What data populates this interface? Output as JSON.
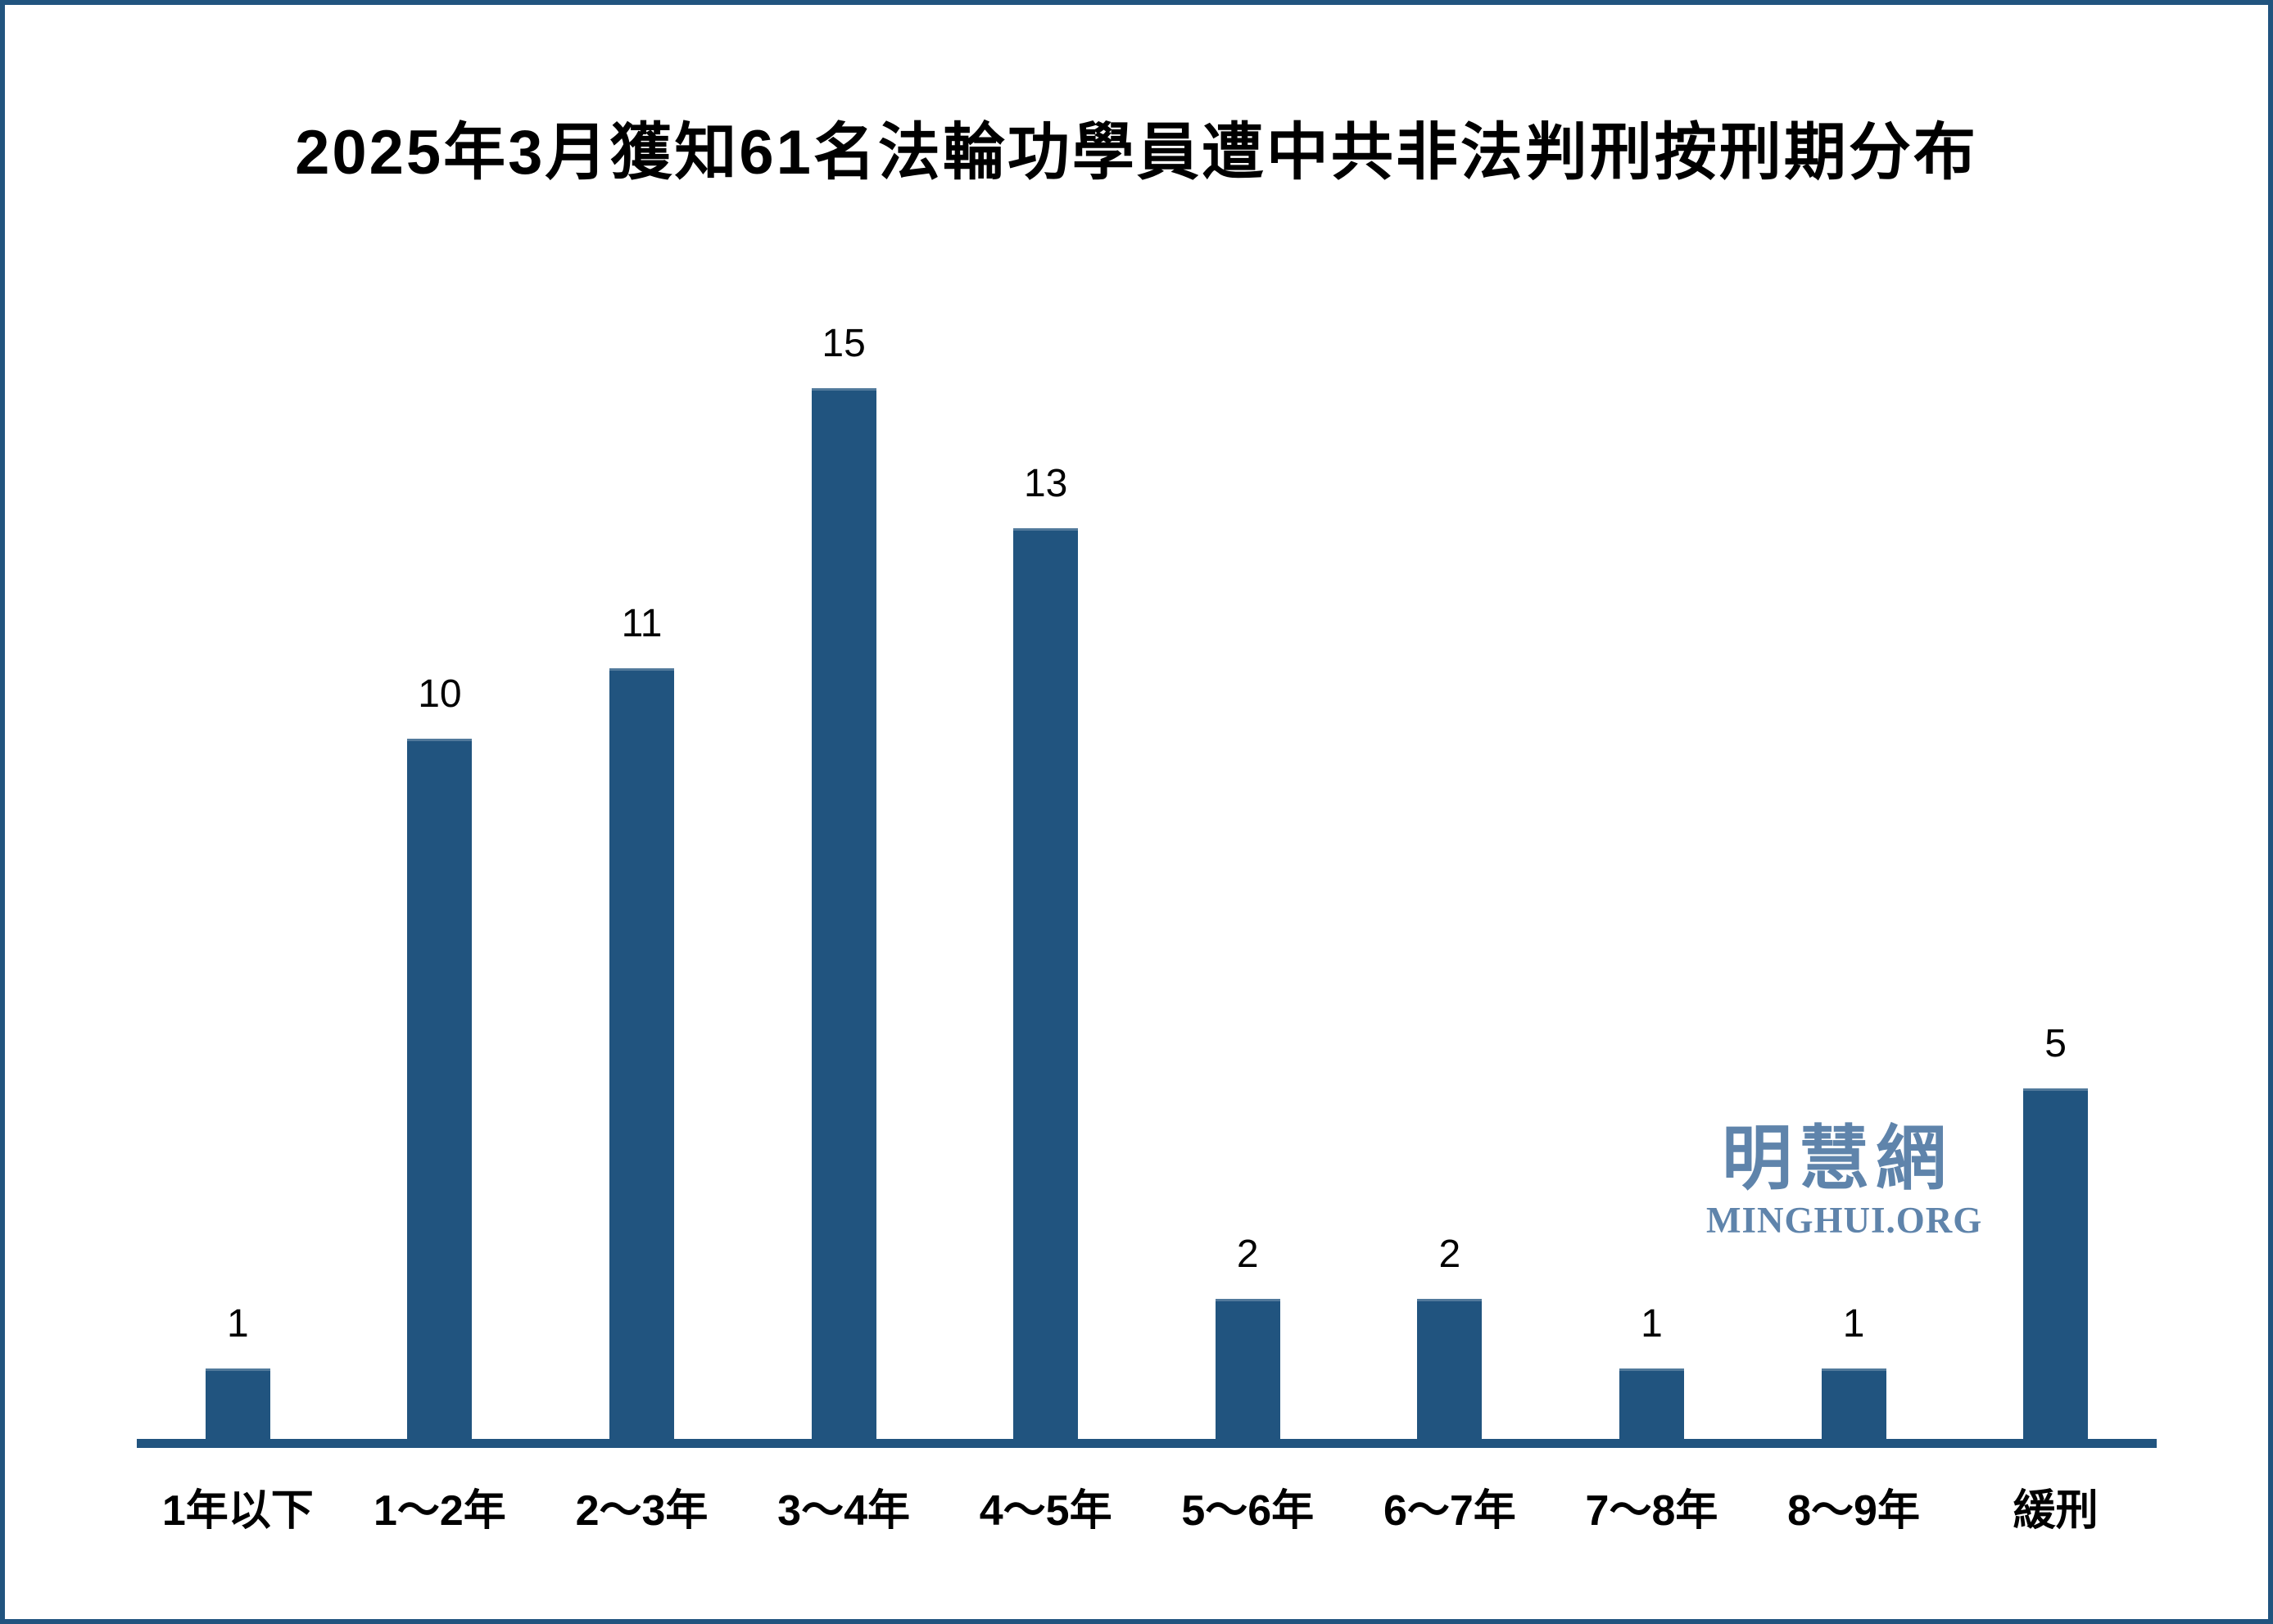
{
  "chart_data": {
    "type": "bar",
    "title": "2025年3月獲知61名法輪功學員遭中共非法判刑按刑期分布",
    "categories": [
      "1年以下",
      "1～2年",
      "2～3年",
      "3～4年",
      "4～5年",
      "5～6年",
      "6～7年",
      "7～8年",
      "8～9年",
      "緩刑"
    ],
    "values": [
      1,
      10,
      11,
      15,
      13,
      2,
      2,
      1,
      1,
      5
    ],
    "xlabel": "",
    "ylabel": "",
    "ylim": [
      0,
      16
    ],
    "grid": false,
    "legend": false,
    "data_labels": true,
    "bar_color": "#21547f",
    "axis_color": "#21547f",
    "data_label_color": "#000000"
  },
  "watermark": {
    "cjk": "明慧網",
    "latin": "MINGHUI.ORG",
    "color": "#5f84ab"
  },
  "frame": {
    "border_color": "#21547f",
    "background": "#ffffff"
  }
}
